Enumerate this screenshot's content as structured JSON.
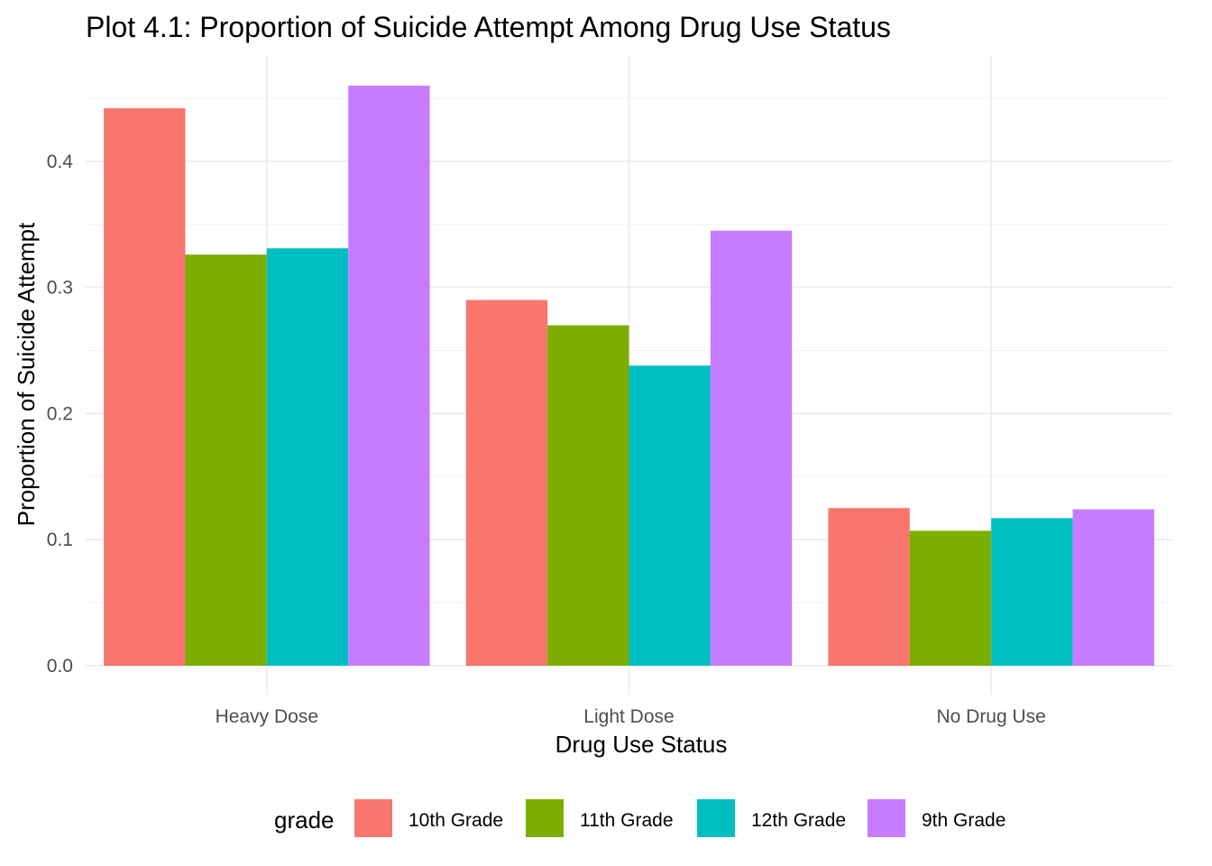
{
  "chart_data": {
    "type": "bar",
    "title": "Plot 4.1: Proportion of Suicide Attempt Among Drug Use Status",
    "xlabel": "Drug Use Status",
    "ylabel": "Proportion of Suicide Attempt",
    "categories": [
      "Heavy Dose",
      "Light Dose",
      "No Drug Use"
    ],
    "series": [
      {
        "name": "10th Grade",
        "color": "#F8766D",
        "values": [
          0.442,
          0.29,
          0.125
        ]
      },
      {
        "name": "11th Grade",
        "color": "#7CAE00",
        "values": [
          0.326,
          0.27,
          0.107
        ]
      },
      {
        "name": "12th Grade",
        "color": "#00BFC4",
        "values": [
          0.331,
          0.238,
          0.117
        ]
      },
      {
        "name": "9th Grade",
        "color": "#C77CFF",
        "values": [
          0.46,
          0.345,
          0.124
        ]
      }
    ],
    "ylim": [
      0,
      0.48
    ],
    "yticks": [
      0.0,
      0.1,
      0.2,
      0.3,
      0.4
    ],
    "ytick_labels": [
      "0.0",
      "0.1",
      "0.2",
      "0.3",
      "0.4"
    ],
    "grid": true,
    "legend": {
      "title": "grade",
      "position": "bottom"
    }
  }
}
